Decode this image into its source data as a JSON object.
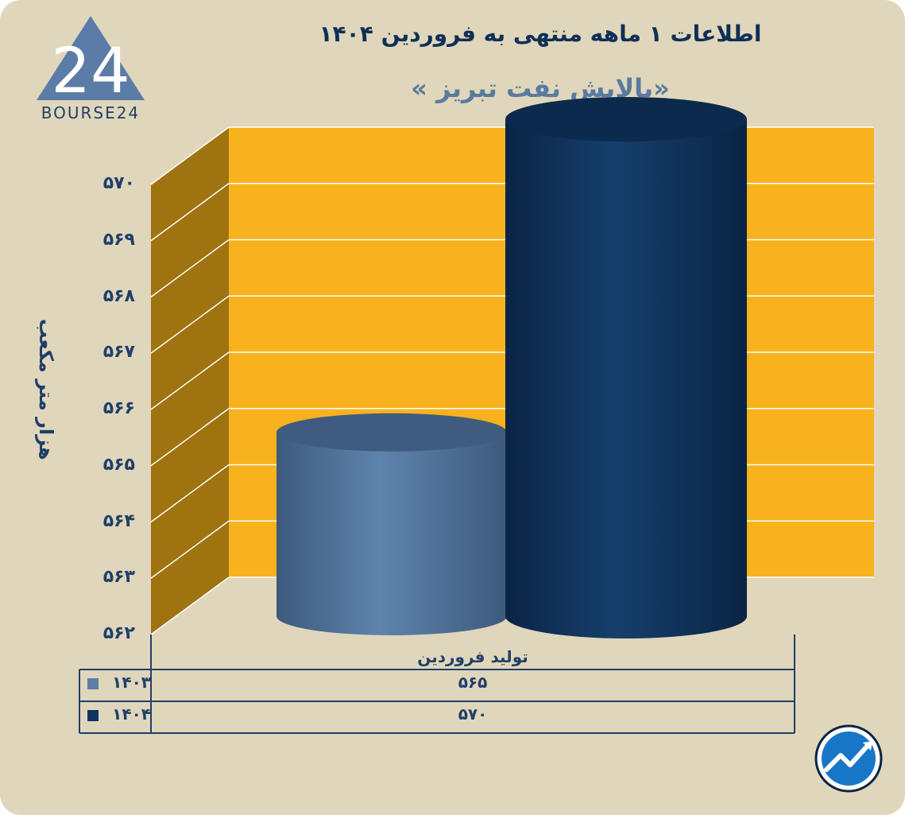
{
  "chart_data": {
    "type": "bar",
    "title": "اطلاعات ۱ ماهه منتهی به فروردین ۱۴۰۴",
    "subtitle": "«پالایش نفت تبریز »",
    "ylabel": "هزار متر مکعب",
    "xlabel": "",
    "ylim": [
      562,
      570
    ],
    "yticks": [
      {
        "value": 570,
        "label": "۵۷۰"
      },
      {
        "value": 569,
        "label": "۵۶۹"
      },
      {
        "value": 568,
        "label": "۵۶۸"
      },
      {
        "value": 567,
        "label": "۵۶۷"
      },
      {
        "value": 566,
        "label": "۵۶۶"
      },
      {
        "value": 565,
        "label": "۵۶۵"
      },
      {
        "value": 564,
        "label": "۵۶۴"
      },
      {
        "value": 563,
        "label": "۵۶۳"
      },
      {
        "value": 562,
        "label": "۵۶۲"
      }
    ],
    "categories": [
      "تولید فروردین"
    ],
    "series": [
      {
        "name": "۱۴۰۳",
        "values": [
          565
        ],
        "value_label": "۵۶۵",
        "color": "#5a7fa8"
      },
      {
        "name": "۱۴۰۴",
        "values": [
          570
        ],
        "value_label": "۵۷۰",
        "color": "#0f3560"
      }
    ],
    "grid": true,
    "legend": "bottom-table"
  },
  "brand": {
    "logo_text": "BOURSE24"
  },
  "colors": {
    "background": "#e0d6bb",
    "wall": "#f7b21d",
    "side_wall": "#9f7310",
    "text": "#1f3f6a"
  }
}
